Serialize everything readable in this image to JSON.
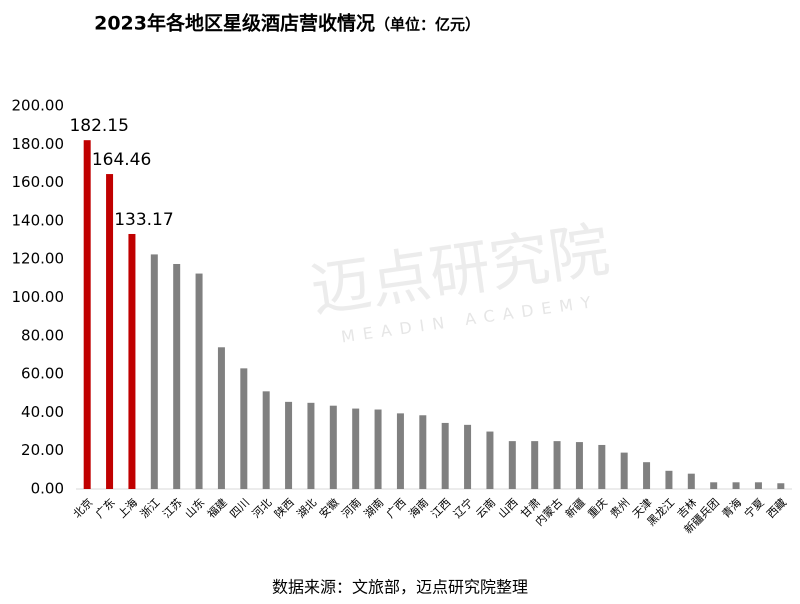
{
  "chart_data": {
    "type": "bar",
    "title": "2023年各地区星级酒店营收情况",
    "subtitle": "（单位：亿元）",
    "source": "数据来源：文旅部，迈点研究院整理",
    "watermark": "迈点研究院",
    "watermark_subtitle": "MEADIN ACADEMY",
    "categories": [
      "北京",
      "广东",
      "上海",
      "浙江",
      "江苏",
      "山东",
      "福建",
      "四川",
      "河北",
      "陕西",
      "湖北",
      "安徽",
      "河南",
      "湖南",
      "广西",
      "海南",
      "江西",
      "辽宁",
      "云南",
      "山西",
      "甘肃",
      "内蒙古",
      "新疆",
      "重庆",
      "贵州",
      "天津",
      "黑龙江",
      "吉林",
      "新疆兵团",
      "青海",
      "宁夏",
      "西藏"
    ],
    "values": [
      182.15,
      164.46,
      133.17,
      122.5,
      117.5,
      112.5,
      74,
      63,
      51,
      45.5,
      45,
      43.5,
      42,
      41.5,
      39.5,
      38.5,
      34.5,
      33.5,
      30,
      25,
      25,
      25,
      24.5,
      23,
      19,
      14,
      9.5,
      8,
      3.5,
      3.5,
      3.5,
      3
    ],
    "value_labels": [
      "182.15",
      "164.46",
      "133.17",
      null,
      null,
      null,
      null,
      null,
      null,
      null,
      null,
      null,
      null,
      null,
      null,
      null,
      null,
      null,
      null,
      null,
      null,
      null,
      null,
      null,
      null,
      null,
      null,
      null,
      null,
      null,
      null,
      null
    ],
    "colors": [
      "#c00000",
      "#c00000",
      "#c00000",
      "#808080",
      "#808080",
      "#808080",
      "#808080",
      "#808080",
      "#808080",
      "#808080",
      "#808080",
      "#808080",
      "#808080",
      "#808080",
      "#808080",
      "#808080",
      "#808080",
      "#808080",
      "#808080",
      "#808080",
      "#808080",
      "#808080",
      "#808080",
      "#808080",
      "#808080",
      "#808080",
      "#808080",
      "#808080",
      "#808080",
      "#808080",
      "#808080",
      "#808080"
    ],
    "ylim": [
      0,
      200
    ],
    "yticks": [
      {
        "value": 0,
        "label": "0.00"
      },
      {
        "value": 20,
        "label": "20.00"
      },
      {
        "value": 40,
        "label": "40.00"
      },
      {
        "value": 60,
        "label": "60.00"
      },
      {
        "value": 80,
        "label": "80.00"
      },
      {
        "value": 100,
        "label": "100.00"
      },
      {
        "value": 120,
        "label": "120.00"
      },
      {
        "value": 140,
        "label": "140.00"
      },
      {
        "value": 160,
        "label": "160.00"
      },
      {
        "value": 180,
        "label": "180.00"
      },
      {
        "value": 200,
        "label": "200.00"
      }
    ],
    "grid": false
  }
}
